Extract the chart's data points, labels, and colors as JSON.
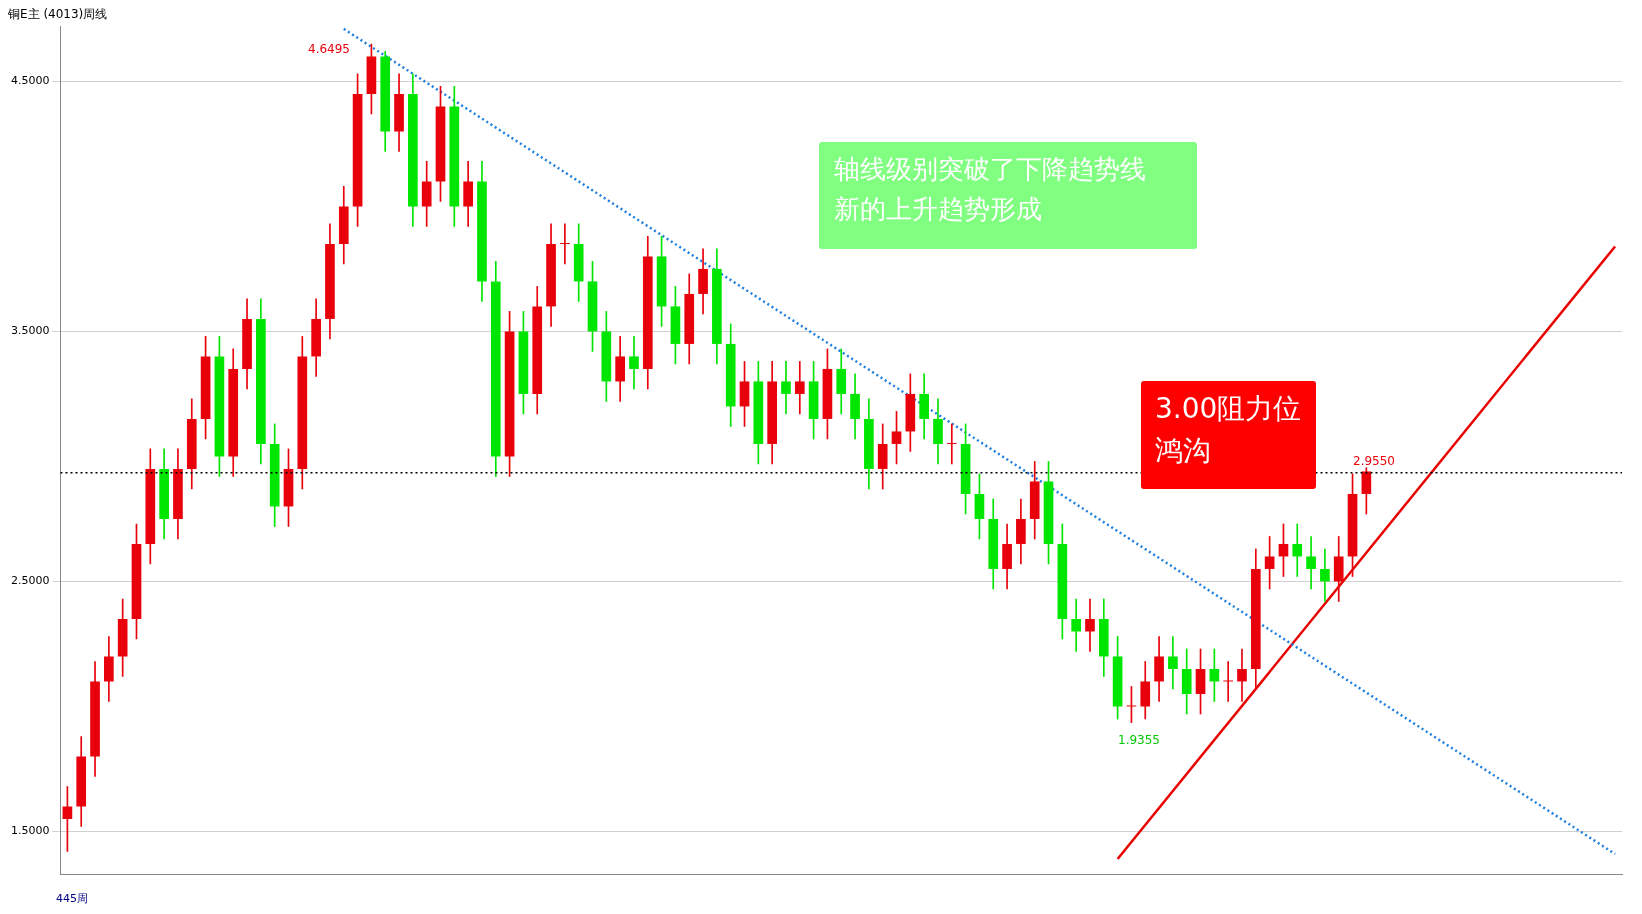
{
  "chart_data": {
    "type": "candlestick",
    "title": "铜E主 (4013)周线",
    "categories": [
      null,
      null,
      null,
      null,
      null,
      null,
      null,
      null,
      null,
      null,
      null,
      null,
      null,
      null,
      null,
      null,
      null,
      null,
      null,
      null,
      null,
      null,
      null,
      null,
      null,
      null,
      null,
      null,
      null,
      null,
      null,
      null,
      null,
      null,
      null,
      null,
      null,
      null,
      null,
      null,
      null,
      null,
      null,
      null,
      null,
      null,
      null,
      null,
      null,
      null,
      null,
      null,
      null,
      null,
      null,
      null,
      null,
      null,
      null,
      null,
      null,
      null,
      null,
      null,
      null,
      null,
      null,
      null,
      null,
      null,
      null,
      null,
      null,
      null,
      null,
      null,
      null,
      null,
      null,
      null,
      null,
      null,
      null,
      null,
      null,
      null,
      null,
      null,
      null,
      null,
      null,
      null,
      null,
      null,
      null,
      null,
      null,
      null,
      null,
      null,
      null,
      null,
      null,
      null,
      null,
      null,
      null,
      null,
      null,
      null,
      null,
      null,
      null
    ],
    "ohlc": [
      [
        1.55,
        1.68,
        1.42,
        1.6
      ],
      [
        1.6,
        1.88,
        1.52,
        1.8
      ],
      [
        1.8,
        2.18,
        1.72,
        2.1
      ],
      [
        2.1,
        2.28,
        2.02,
        2.2
      ],
      [
        2.2,
        2.43,
        2.12,
        2.35
      ],
      [
        2.35,
        2.73,
        2.27,
        2.65
      ],
      [
        2.65,
        3.03,
        2.57,
        2.95
      ],
      [
        2.95,
        3.03,
        2.67,
        2.75
      ],
      [
        2.75,
        3.03,
        2.67,
        2.95
      ],
      [
        2.95,
        3.23,
        2.87,
        3.15
      ],
      [
        3.15,
        3.48,
        3.07,
        3.4
      ],
      [
        3.4,
        3.48,
        2.92,
        3.0
      ],
      [
        3.0,
        3.43,
        2.92,
        3.35
      ],
      [
        3.35,
        3.63,
        3.27,
        3.55
      ],
      [
        3.55,
        3.63,
        2.97,
        3.05
      ],
      [
        3.05,
        3.13,
        2.72,
        2.8
      ],
      [
        2.8,
        3.03,
        2.72,
        2.95
      ],
      [
        2.95,
        3.48,
        2.87,
        3.4
      ],
      [
        3.4,
        3.63,
        3.32,
        3.55
      ],
      [
        3.55,
        3.93,
        3.47,
        3.85
      ],
      [
        3.85,
        4.08,
        3.77,
        4.0
      ],
      [
        4.0,
        4.53,
        3.92,
        4.45
      ],
      [
        4.45,
        4.6495,
        4.37,
        4.6
      ],
      [
        4.6,
        4.62,
        4.22,
        4.3
      ],
      [
        4.3,
        4.53,
        4.22,
        4.45
      ],
      [
        4.45,
        4.53,
        3.92,
        4.0
      ],
      [
        4.0,
        4.18,
        3.92,
        4.1
      ],
      [
        4.1,
        4.48,
        4.02,
        4.4
      ],
      [
        4.4,
        4.48,
        3.92,
        4.0
      ],
      [
        4.0,
        4.18,
        3.92,
        4.1
      ],
      [
        4.1,
        4.18,
        3.62,
        3.7
      ],
      [
        3.7,
        3.78,
        2.92,
        3.0
      ],
      [
        3.0,
        3.58,
        2.92,
        3.5
      ],
      [
        3.5,
        3.58,
        3.17,
        3.25
      ],
      [
        3.25,
        3.68,
        3.17,
        3.6
      ],
      [
        3.6,
        3.93,
        3.52,
        3.85
      ],
      [
        3.85,
        3.93,
        3.77,
        3.85
      ],
      [
        3.85,
        3.93,
        3.62,
        3.7
      ],
      [
        3.7,
        3.78,
        3.42,
        3.5
      ],
      [
        3.5,
        3.58,
        3.22,
        3.3
      ],
      [
        3.3,
        3.48,
        3.22,
        3.4
      ],
      [
        3.4,
        3.48,
        3.27,
        3.35
      ],
      [
        3.35,
        3.88,
        3.27,
        3.8
      ],
      [
        3.8,
        3.88,
        3.52,
        3.6
      ],
      [
        3.6,
        3.68,
        3.37,
        3.45
      ],
      [
        3.45,
        3.73,
        3.37,
        3.65
      ],
      [
        3.65,
        3.83,
        3.57,
        3.75
      ],
      [
        3.75,
        3.83,
        3.37,
        3.45
      ],
      [
        3.45,
        3.53,
        3.12,
        3.2
      ],
      [
        3.2,
        3.38,
        3.12,
        3.3
      ],
      [
        3.3,
        3.38,
        2.97,
        3.05
      ],
      [
        3.05,
        3.38,
        2.97,
        3.3
      ],
      [
        3.3,
        3.38,
        3.17,
        3.25
      ],
      [
        3.25,
        3.38,
        3.17,
        3.3
      ],
      [
        3.3,
        3.38,
        3.07,
        3.15
      ],
      [
        3.15,
        3.43,
        3.07,
        3.35
      ],
      [
        3.35,
        3.43,
        3.17,
        3.25
      ],
      [
        3.25,
        3.33,
        3.07,
        3.15
      ],
      [
        3.15,
        3.23,
        2.87,
        2.95
      ],
      [
        2.95,
        3.13,
        2.87,
        3.05
      ],
      [
        3.05,
        3.18,
        2.97,
        3.1
      ],
      [
        3.1,
        3.33,
        3.02,
        3.25
      ],
      [
        3.25,
        3.33,
        3.07,
        3.15
      ],
      [
        3.15,
        3.23,
        2.97,
        3.05
      ],
      [
        3.05,
        3.13,
        2.97,
        3.05
      ],
      [
        3.05,
        3.13,
        2.77,
        2.85
      ],
      [
        2.85,
        2.93,
        2.67,
        2.75
      ],
      [
        2.75,
        2.83,
        2.47,
        2.55
      ],
      [
        2.55,
        2.73,
        2.47,
        2.65
      ],
      [
        2.65,
        2.83,
        2.57,
        2.75
      ],
      [
        2.75,
        2.98,
        2.67,
        2.9
      ],
      [
        2.9,
        2.98,
        2.57,
        2.65
      ],
      [
        2.65,
        2.73,
        2.27,
        2.35
      ],
      [
        2.35,
        2.43,
        2.22,
        2.3
      ],
      [
        2.3,
        2.43,
        2.22,
        2.35
      ],
      [
        2.35,
        2.43,
        2.12,
        2.2
      ],
      [
        2.2,
        2.28,
        1.95,
        2.0
      ],
      [
        2.0,
        2.08,
        1.9355,
        2.0
      ],
      [
        2.0,
        2.18,
        1.95,
        2.1
      ],
      [
        2.1,
        2.28,
        2.02,
        2.2
      ],
      [
        2.2,
        2.28,
        2.07,
        2.15
      ],
      [
        2.15,
        2.23,
        1.97,
        2.05
      ],
      [
        2.05,
        2.23,
        1.97,
        2.15
      ],
      [
        2.15,
        2.23,
        2.02,
        2.1
      ],
      [
        2.1,
        2.18,
        2.02,
        2.1
      ],
      [
        2.1,
        2.23,
        2.02,
        2.15
      ],
      [
        2.15,
        2.63,
        2.07,
        2.55
      ],
      [
        2.55,
        2.68,
        2.47,
        2.6
      ],
      [
        2.6,
        2.73,
        2.52,
        2.65
      ],
      [
        2.65,
        2.73,
        2.52,
        2.6
      ],
      [
        2.6,
        2.68,
        2.47,
        2.55
      ],
      [
        2.55,
        2.63,
        2.42,
        2.5
      ],
      [
        2.5,
        2.68,
        2.42,
        2.6
      ],
      [
        2.6,
        2.93,
        2.52,
        2.85
      ],
      [
        2.85,
        2.955,
        2.77,
        2.94
      ],
      null,
      null,
      null,
      null,
      null,
      null,
      null,
      null,
      null,
      null,
      null,
      null,
      null,
      null,
      null,
      null,
      null,
      null
    ],
    "colors": [
      "#e8000b",
      "#e8000b",
      "#e8000b",
      "#e8000b",
      "#e8000b",
      "#e8000b",
      "#e8000b",
      "#00e600",
      "#e8000b",
      "#e8000b",
      "#e8000b",
      "#00e600",
      "#e8000b",
      "#e8000b",
      "#00e600",
      "#00e600",
      "#e8000b",
      "#e8000b",
      "#e8000b",
      "#e8000b",
      "#e8000b",
      "#e8000b",
      "#e8000b",
      "#00e600",
      "#e8000b",
      "#00e600",
      "#e8000b",
      "#e8000b",
      "#00e600",
      "#e8000b",
      "#00e600",
      "#00e600",
      "#e8000b",
      "#00e600",
      "#e8000b",
      "#e8000b",
      "#e8000b",
      "#00e600",
      "#00e600",
      "#00e600",
      "#e8000b",
      "#00e600",
      "#e8000b",
      "#00e600",
      "#00e600",
      "#e8000b",
      "#e8000b",
      "#00e600",
      "#00e600",
      "#e8000b",
      "#00e600",
      "#e8000b",
      "#00e600",
      "#e8000b",
      "#00e600",
      "#e8000b",
      "#00e600",
      "#00e600",
      "#00e600",
      "#e8000b",
      "#e8000b",
      "#e8000b",
      "#00e600",
      "#00e600",
      "#e8000b",
      "#00e600",
      "#00e600",
      "#00e600",
      "#e8000b",
      "#e8000b",
      "#e8000b",
      "#00e600",
      "#00e600",
      "#00e600",
      "#e8000b",
      "#00e600",
      "#00e600",
      "#e8000b",
      "#e8000b",
      "#e8000b",
      "#00e600",
      "#00e600",
      "#e8000b",
      "#00e600",
      "#e8000b",
      "#e8000b",
      "#e8000b",
      "#e8000b",
      "#e8000b",
      "#00e600",
      "#00e600",
      "#00e600",
      "#e8000b",
      "#e8000b",
      "#e8000b",
      null,
      null,
      null,
      null,
      null,
      null,
      null,
      null,
      null,
      null,
      null,
      null,
      null,
      null,
      null,
      null,
      null,
      null
    ],
    "series": [
      {
        "type": "line",
        "color": "#1e7fe0",
        "line_style": "dotted",
        "values": [
          null,
          null,
          null,
          null,
          null,
          null,
          null,
          null,
          null,
          null,
          null,
          null,
          null,
          null,
          null,
          null,
          null,
          null,
          null,
          null,
          4.71,
          null,
          null,
          null,
          null,
          null,
          null,
          null,
          null,
          null,
          null,
          null,
          null,
          null,
          null,
          null,
          null,
          null,
          null,
          null,
          null,
          null,
          null,
          null,
          null,
          null,
          null,
          null,
          null,
          null,
          null,
          null,
          null,
          null,
          null,
          null,
          null,
          null,
          null,
          null,
          null,
          null,
          null,
          null,
          null,
          null,
          null,
          null,
          null,
          null,
          null,
          null,
          null,
          null,
          null,
          null,
          null,
          null,
          null,
          null,
          null,
          null,
          null,
          null,
          null,
          null,
          null,
          null,
          null,
          null,
          null,
          null,
          null,
          null,
          null,
          null,
          null,
          null,
          null,
          null,
          null,
          null,
          null,
          null,
          null,
          null,
          null,
          null,
          null,
          null,
          null,
          null,
          1.41
        ]
      },
      {
        "type": "line",
        "color": "#e80000",
        "line_style": "solid",
        "values": [
          null,
          null,
          null,
          null,
          null,
          null,
          null,
          null,
          null,
          null,
          null,
          null,
          null,
          null,
          null,
          null,
          null,
          null,
          null,
          null,
          null,
          null,
          null,
          null,
          null,
          null,
          null,
          null,
          null,
          null,
          null,
          null,
          null,
          null,
          null,
          null,
          null,
          null,
          null,
          null,
          null,
          null,
          null,
          null,
          null,
          null,
          null,
          null,
          null,
          null,
          null,
          null,
          null,
          null,
          null,
          null,
          null,
          null,
          null,
          null,
          null,
          null,
          null,
          null,
          null,
          null,
          null,
          null,
          null,
          null,
          null,
          null,
          null,
          null,
          null,
          null,
          1.39,
          null,
          null,
          null,
          null,
          null,
          null,
          null,
          null,
          null,
          null,
          null,
          null,
          null,
          null,
          null,
          null,
          null,
          null,
          null,
          null,
          null,
          null,
          null,
          null,
          null,
          null,
          null,
          null,
          null,
          null,
          null,
          null,
          null,
          null,
          null,
          3.84
        ]
      }
    ],
    "ylim": [
      1.33,
      4.72
    ],
    "yticks": [
      {
        "value": 1.5,
        "label": "1.5000"
      },
      {
        "value": 2.5,
        "label": "2.5000"
      },
      {
        "value": 3.5,
        "label": "3.5000"
      },
      {
        "value": 4.5,
        "label": "4.5000"
      }
    ],
    "tick_labels": "y",
    "grid": "y",
    "ref_lines": [
      {
        "axis": "y",
        "value": 2.935,
        "color": "#000000",
        "line_style": "dotted"
      }
    ],
    "annotations": [
      "轴线级别突破了下降趋势线",
      "新的上升趋势形成",
      "3.00阻力位",
      "鸿沟",
      "445周",
      "4.6495",
      "2.9550",
      "1.9355"
    ]
  }
}
